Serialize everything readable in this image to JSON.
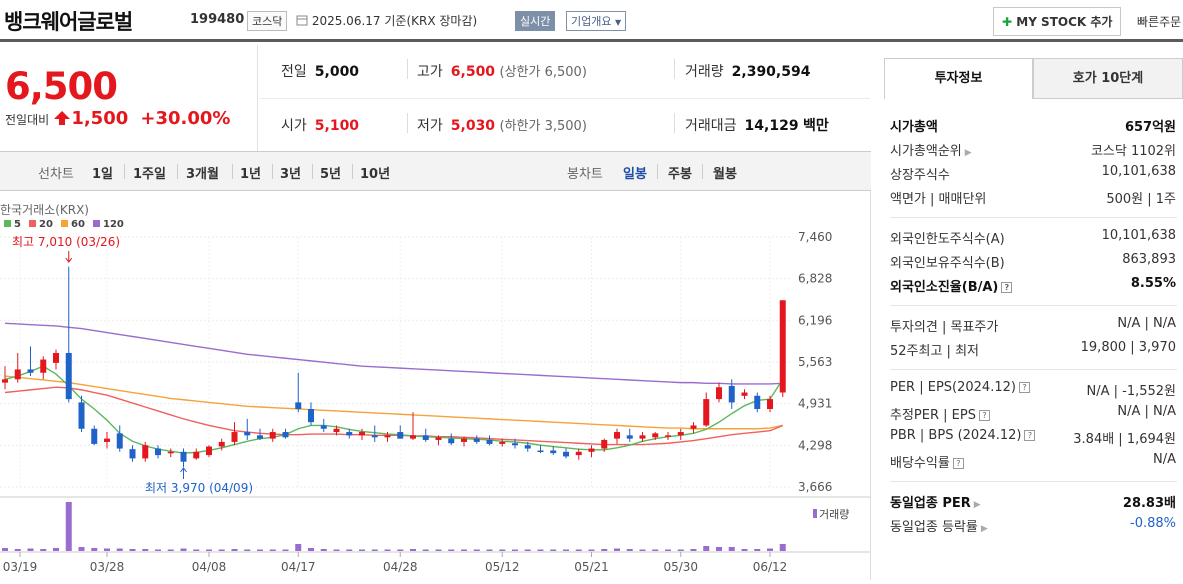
{
  "header": {
    "name": "뱅크웨어글로벌",
    "code": "199480",
    "market": "코스닥",
    "date": "2025.06.17",
    "basis": "기준(KRX 장마감)",
    "realtime": "실시간",
    "company": "기업개요",
    "mystock": "MY STOCK 추가",
    "quick": "빠른주문"
  },
  "price": {
    "current": "6,500",
    "change_label": "전일대비",
    "change": "1,500",
    "change_pct": "+30.00%"
  },
  "summary": {
    "prev_k": "전일",
    "prev_v": "5,000",
    "high_k": "고가",
    "high_v": "6,500",
    "high_sub": "(상한가 6,500)",
    "vol_k": "거래량",
    "vol_v": "2,390,594",
    "open_k": "시가",
    "open_v": "5,100",
    "low_k": "저가",
    "low_v": "5,030",
    "low_sub": "(하한가 3,500)",
    "amt_k": "거래대금",
    "amt_v": "14,129",
    "amt_unit": "백만"
  },
  "period": {
    "line_label": "선차트",
    "line_items": [
      "1일",
      "1주일",
      "3개월",
      "1년",
      "3년",
      "5년",
      "10년"
    ],
    "candle_label": "봉차트",
    "candle_items": [
      "일봉",
      "주봉",
      "월봉"
    ]
  },
  "info": {
    "tab1": "투자정보",
    "tab2": "호가 10단계",
    "rows": [
      {
        "k": "시가총액",
        "v": "657억원"
      },
      {
        "k": "시가총액순위",
        "v": "코스닥 1102위"
      },
      {
        "k": "상장주식수",
        "v": "10,101,638"
      },
      {
        "k": "액면가 | 매매단위",
        "v": "500원 | 1주"
      },
      {
        "k": "외국인한도주식수(A)",
        "v": "10,101,638"
      },
      {
        "k": "외국인보유주식수(B)",
        "v": "863,893"
      },
      {
        "k": "외국인소진율(B/A)",
        "v": "8.55%"
      },
      {
        "k": "투자의견 | 목표주가",
        "v": "N/A | N/A"
      },
      {
        "k": "52주최고 | 최저",
        "v": "19,800 | 3,970"
      },
      {
        "k": "PER | EPS(2024.12)",
        "v": "N/A | -1,552원"
      },
      {
        "k": "추정PER | EPS",
        "v": "N/A | N/A"
      },
      {
        "k": "PBR | BPS (2024.12)",
        "v": "3.84배 | 1,694원"
      },
      {
        "k": "배당수익률",
        "v": "N/A"
      },
      {
        "k": "동일업종 PER",
        "v": "28.83배"
      },
      {
        "k": "동일업종 등락률",
        "v": "-0.88%"
      }
    ]
  },
  "chart_data": {
    "type": "candlestick",
    "source": "한국거래소(KRX)",
    "legend": [
      {
        "name": "5",
        "color": "#5cb85c"
      },
      {
        "name": "20",
        "color": "#f0605d"
      },
      {
        "name": "60",
        "color": "#f5a33a"
      },
      {
        "name": "120",
        "color": "#9a6ccf"
      }
    ],
    "yticks": [
      "7,460",
      "6,828",
      "6,196",
      "5,563",
      "4,931",
      "4,298",
      "3,666"
    ],
    "ylim": [
      3666,
      7460
    ],
    "xticks": [
      "03/19",
      "03/28",
      "04/08",
      "04/17",
      "04/28",
      "05/12",
      "05/21",
      "05/30",
      "06/12"
    ],
    "high_label": "최고 7,010 (03/26)",
    "low_label": "최저 3,970 (04/09)",
    "volume_label": "거래량",
    "candles": [
      {
        "o": 5250,
        "h": 5500,
        "l": 5150,
        "c": 5300
      },
      {
        "o": 5300,
        "h": 5700,
        "l": 5250,
        "c": 5450
      },
      {
        "o": 5450,
        "h": 5800,
        "l": 5350,
        "c": 5400
      },
      {
        "o": 5400,
        "h": 5650,
        "l": 5300,
        "c": 5600
      },
      {
        "o": 5550,
        "h": 5750,
        "l": 5450,
        "c": 5700
      },
      {
        "o": 5700,
        "h": 7010,
        "l": 4950,
        "c": 5000
      },
      {
        "o": 4950,
        "h": 5050,
        "l": 4500,
        "c": 4550
      },
      {
        "o": 4550,
        "h": 4600,
        "l": 4300,
        "c": 4320
      },
      {
        "o": 4350,
        "h": 4500,
        "l": 4250,
        "c": 4400
      },
      {
        "o": 4480,
        "h": 4600,
        "l": 4200,
        "c": 4250
      },
      {
        "o": 4240,
        "h": 4300,
        "l": 4050,
        "c": 4100
      },
      {
        "o": 4100,
        "h": 4350,
        "l": 4050,
        "c": 4300
      },
      {
        "o": 4250,
        "h": 4300,
        "l": 4100,
        "c": 4150
      },
      {
        "o": 4180,
        "h": 4250,
        "l": 4120,
        "c": 4200
      },
      {
        "o": 4200,
        "h": 4250,
        "l": 3970,
        "c": 4050
      },
      {
        "o": 4100,
        "h": 4250,
        "l": 4080,
        "c": 4200
      },
      {
        "o": 4150,
        "h": 4300,
        "l": 4120,
        "c": 4280
      },
      {
        "o": 4280,
        "h": 4400,
        "l": 4220,
        "c": 4350
      },
      {
        "o": 4350,
        "h": 4650,
        "l": 4300,
        "c": 4500
      },
      {
        "o": 4500,
        "h": 4700,
        "l": 4380,
        "c": 4450
      },
      {
        "o": 4450,
        "h": 4550,
        "l": 4380,
        "c": 4400
      },
      {
        "o": 4400,
        "h": 4550,
        "l": 4350,
        "c": 4500
      },
      {
        "o": 4500,
        "h": 4550,
        "l": 4400,
        "c": 4420
      },
      {
        "o": 4950,
        "h": 5400,
        "l": 4800,
        "c": 4850
      },
      {
        "o": 4850,
        "h": 4950,
        "l": 4600,
        "c": 4650
      },
      {
        "o": 4600,
        "h": 4700,
        "l": 4500,
        "c": 4550
      },
      {
        "o": 4500,
        "h": 4600,
        "l": 4450,
        "c": 4550
      },
      {
        "o": 4500,
        "h": 4550,
        "l": 4400,
        "c": 4450
      },
      {
        "o": 4450,
        "h": 4550,
        "l": 4380,
        "c": 4500
      },
      {
        "o": 4450,
        "h": 4600,
        "l": 4350,
        "c": 4420
      },
      {
        "o": 4420,
        "h": 4500,
        "l": 4350,
        "c": 4450
      },
      {
        "o": 4500,
        "h": 4600,
        "l": 4400,
        "c": 4400
      },
      {
        "o": 4400,
        "h": 4800,
        "l": 4380,
        "c": 4450
      },
      {
        "o": 4450,
        "h": 4550,
        "l": 4350,
        "c": 4380
      },
      {
        "o": 4380,
        "h": 4450,
        "l": 4300,
        "c": 4420
      },
      {
        "o": 4400,
        "h": 4480,
        "l": 4300,
        "c": 4330
      },
      {
        "o": 4350,
        "h": 4430,
        "l": 4280,
        "c": 4400
      },
      {
        "o": 4400,
        "h": 4450,
        "l": 4320,
        "c": 4350
      },
      {
        "o": 4380,
        "h": 4450,
        "l": 4300,
        "c": 4320
      },
      {
        "o": 4320,
        "h": 4400,
        "l": 4280,
        "c": 4350
      },
      {
        "o": 4330,
        "h": 4400,
        "l": 4250,
        "c": 4300
      },
      {
        "o": 4300,
        "h": 4350,
        "l": 4200,
        "c": 4250
      },
      {
        "o": 4220,
        "h": 4300,
        "l": 4180,
        "c": 4200
      },
      {
        "o": 4220,
        "h": 4280,
        "l": 4150,
        "c": 4180
      },
      {
        "o": 4200,
        "h": 4250,
        "l": 4100,
        "c": 4130
      },
      {
        "o": 4150,
        "h": 4250,
        "l": 4080,
        "c": 4200
      },
      {
        "o": 4200,
        "h": 4300,
        "l": 4120,
        "c": 4250
      },
      {
        "o": 4250,
        "h": 4400,
        "l": 4200,
        "c": 4380
      },
      {
        "o": 4400,
        "h": 4550,
        "l": 4320,
        "c": 4500
      },
      {
        "o": 4450,
        "h": 4550,
        "l": 4350,
        "c": 4400
      },
      {
        "o": 4400,
        "h": 4500,
        "l": 4350,
        "c": 4450
      },
      {
        "o": 4420,
        "h": 4500,
        "l": 4380,
        "c": 4480
      },
      {
        "o": 4430,
        "h": 4500,
        "l": 4380,
        "c": 4450
      },
      {
        "o": 4450,
        "h": 4550,
        "l": 4380,
        "c": 4500
      },
      {
        "o": 4550,
        "h": 4650,
        "l": 4480,
        "c": 4600
      },
      {
        "o": 4600,
        "h": 5100,
        "l": 4580,
        "c": 5000
      },
      {
        "o": 5000,
        "h": 5250,
        "l": 4950,
        "c": 5180
      },
      {
        "o": 5200,
        "h": 5300,
        "l": 4850,
        "c": 4950
      },
      {
        "o": 5050,
        "h": 5150,
        "l": 5000,
        "c": 5100
      },
      {
        "o": 5050,
        "h": 5100,
        "l": 4800,
        "c": 4850
      },
      {
        "o": 4850,
        "h": 5050,
        "l": 4800,
        "c": 5000
      },
      {
        "o": 5100,
        "h": 6500,
        "l": 5030,
        "c": 6500
      }
    ],
    "ma5": [
      5300,
      5350,
      5420,
      5500,
      5380,
      5200,
      5000,
      4850,
      4680,
      4480,
      4360,
      4290,
      4240,
      4210,
      4180,
      4190,
      4220,
      4260,
      4310,
      4360,
      4400,
      4420,
      4460,
      4550,
      4600,
      4600,
      4580,
      4540,
      4510,
      4490,
      4470,
      4460,
      4440,
      4430,
      4420,
      4410,
      4400,
      4390,
      4380,
      4360,
      4350,
      4330,
      4300,
      4280,
      4260,
      4240,
      4230,
      4230,
      4260,
      4300,
      4360,
      4400,
      4430,
      4450,
      4480,
      4540,
      4650,
      4780,
      4900,
      4980,
      5000,
      5300
    ],
    "ma20": [
      5100,
      5120,
      5140,
      5160,
      5180,
      5170,
      5140,
      5100,
      5060,
      5000,
      4940,
      4880,
      4820,
      4760,
      4700,
      4650,
      4600,
      4560,
      4520,
      4500,
      4480,
      4470,
      4460,
      4460,
      4470,
      4470,
      4470,
      4460,
      4460,
      4450,
      4450,
      4450,
      4440,
      4440,
      4430,
      4430,
      4420,
      4410,
      4400,
      4390,
      4380,
      4370,
      4360,
      4350,
      4340,
      4330,
      4320,
      4310,
      4310,
      4310,
      4310,
      4320,
      4330,
      4350,
      4370,
      4400,
      4430,
      4460,
      4480,
      4500,
      4520,
      4600
    ],
    "ma60": [
      5350,
      5330,
      5310,
      5290,
      5270,
      5250,
      5220,
      5190,
      5160,
      5130,
      5100,
      5070,
      5040,
      5010,
      4990,
      4970,
      4950,
      4930,
      4910,
      4890,
      4880,
      4870,
      4860,
      4850,
      4840,
      4830,
      4820,
      4810,
      4800,
      4790,
      4780,
      4770,
      4760,
      4750,
      4740,
      4730,
      4720,
      4710,
      4700,
      4690,
      4680,
      4670,
      4660,
      4650,
      4640,
      4630,
      4620,
      4610,
      4600,
      4590,
      4580,
      4570,
      4560,
      4560,
      4550,
      4550,
      4550,
      4550,
      4550,
      4550,
      4560,
      4600
    ],
    "ma120": [
      6150,
      6140,
      6130,
      6120,
      6110,
      6090,
      6070,
      6040,
      6010,
      5980,
      5950,
      5920,
      5890,
      5860,
      5830,
      5800,
      5770,
      5740,
      5710,
      5680,
      5660,
      5640,
      5620,
      5600,
      5580,
      5560,
      5540,
      5520,
      5500,
      5490,
      5480,
      5470,
      5460,
      5450,
      5440,
      5430,
      5420,
      5410,
      5400,
      5390,
      5380,
      5370,
      5360,
      5350,
      5340,
      5330,
      5320,
      5310,
      5300,
      5290,
      5280,
      5270,
      5260,
      5250,
      5250,
      5240,
      5240,
      5230,
      5230,
      5230,
      5230,
      5240
    ],
    "volume": [
      6,
      4,
      5,
      4,
      6,
      98,
      8,
      6,
      5,
      5,
      4,
      4,
      3,
      3,
      5,
      3,
      3,
      3,
      4,
      3,
      3,
      3,
      3,
      14,
      6,
      4,
      3,
      3,
      3,
      3,
      3,
      3,
      4,
      3,
      3,
      3,
      3,
      3,
      3,
      3,
      3,
      3,
      3,
      3,
      3,
      3,
      3,
      4,
      5,
      4,
      3,
      3,
      3,
      3,
      4,
      10,
      8,
      8,
      4,
      4,
      5,
      14
    ]
  }
}
